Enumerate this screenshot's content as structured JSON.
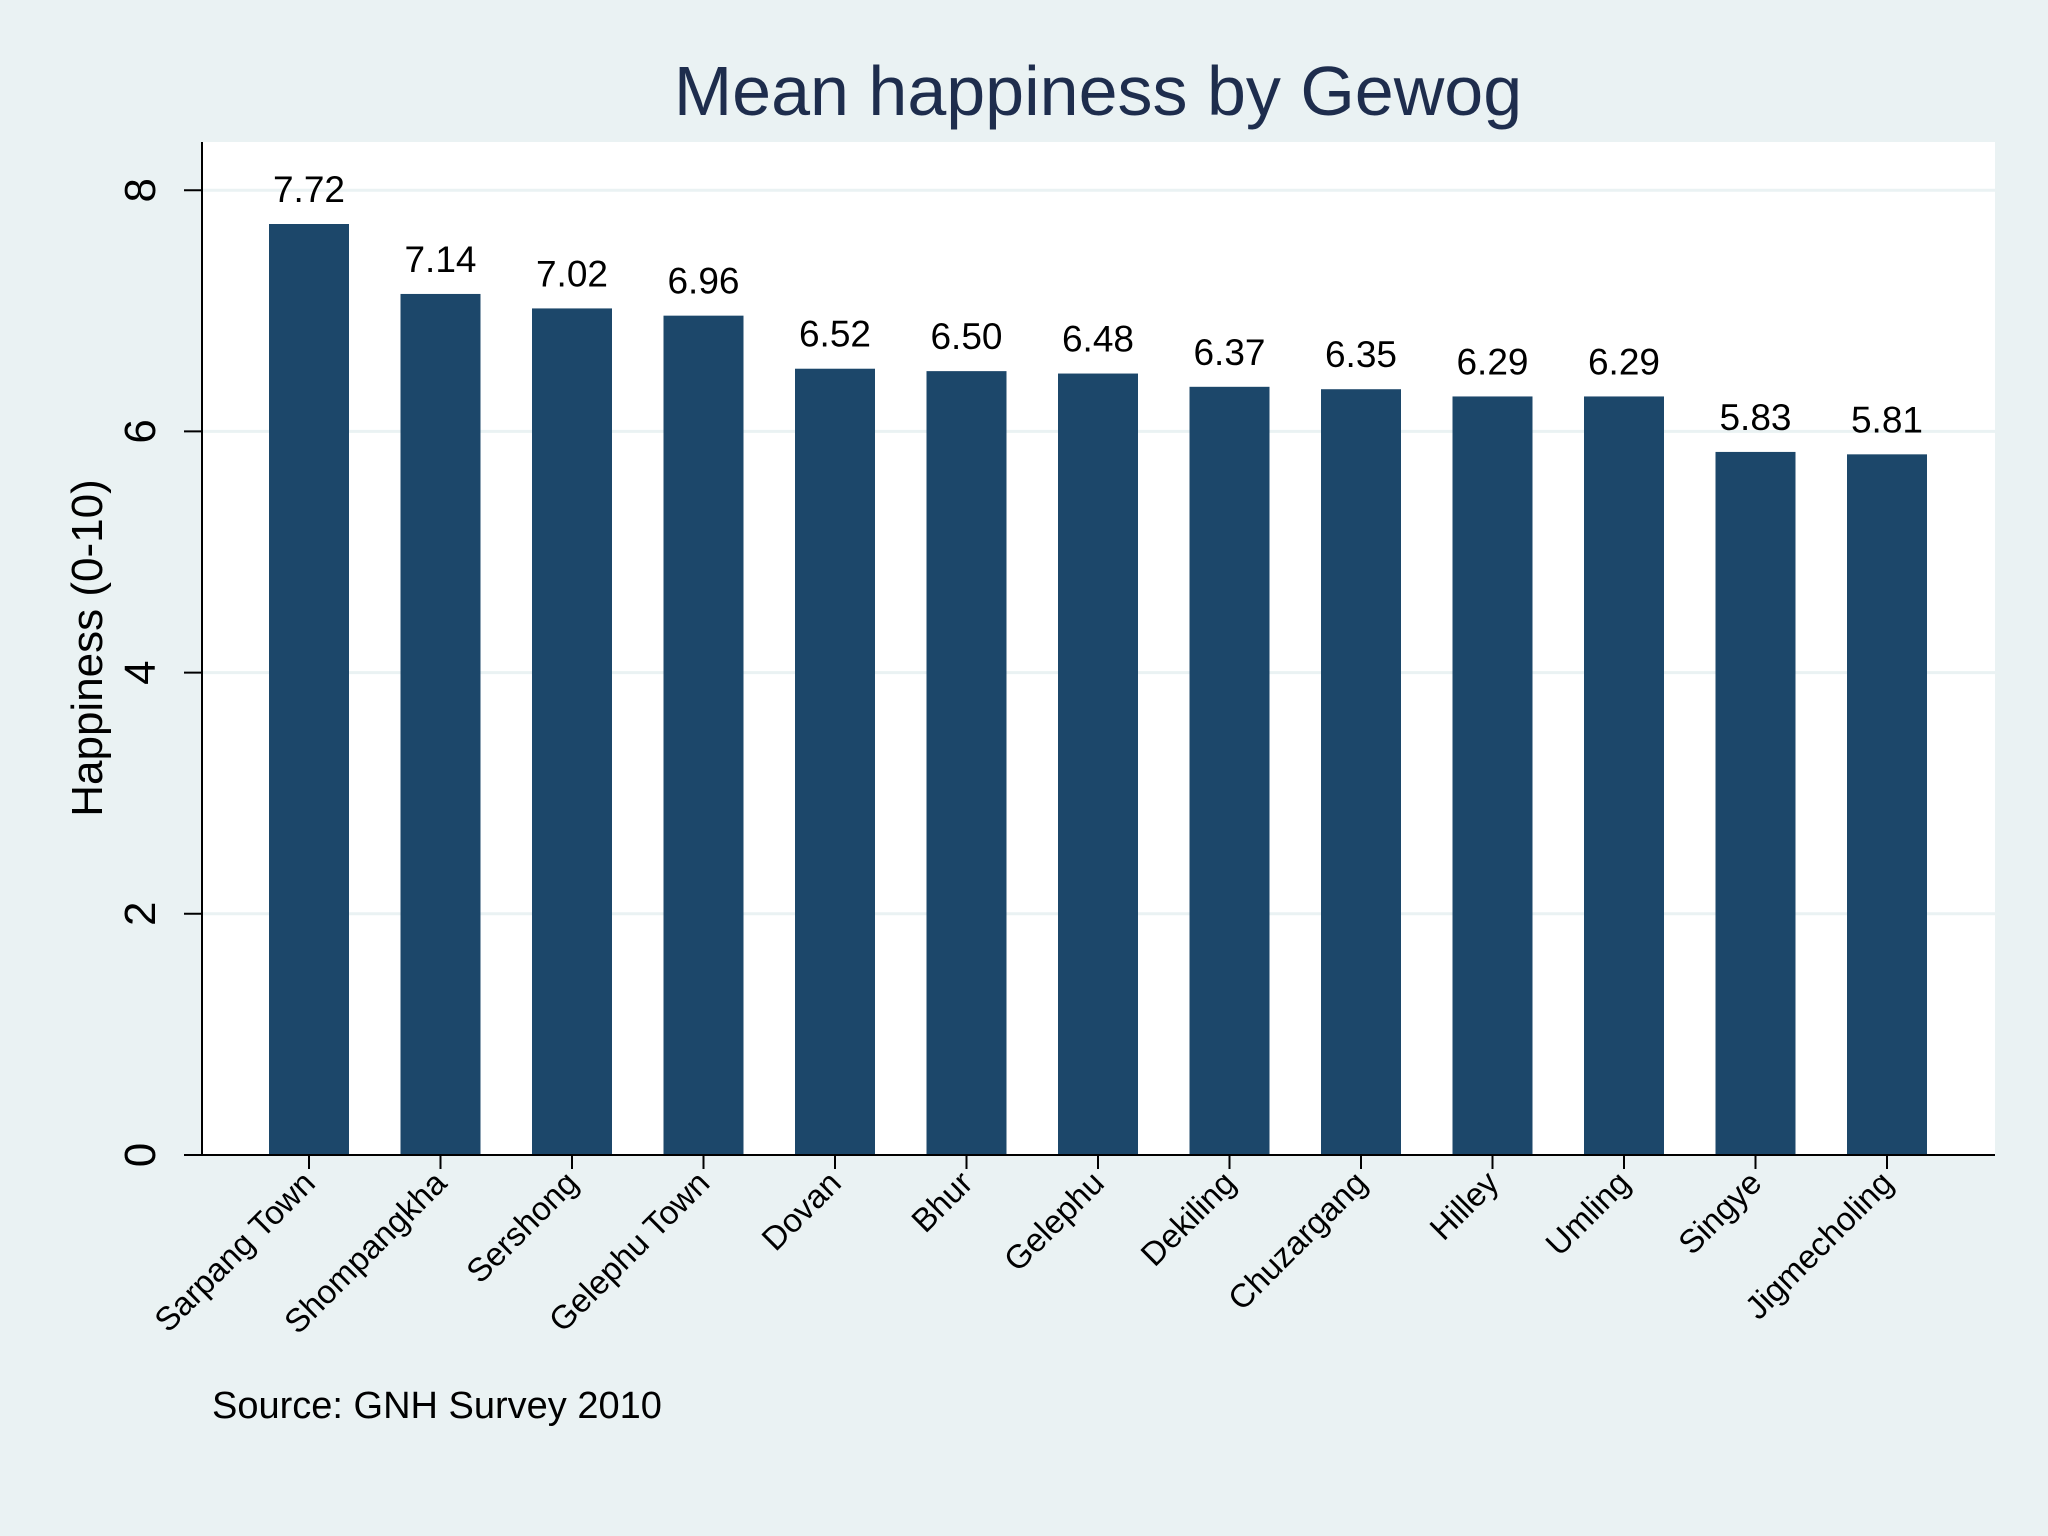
{
  "chart_data": {
    "type": "bar",
    "title": "Mean happiness by Gewog",
    "xlabel": "",
    "ylabel": "Happiness (0-10)",
    "ylim": [
      0,
      8.4
    ],
    "yticks": [
      0,
      2,
      4,
      6,
      8
    ],
    "grid": true,
    "categories": [
      "Sarpang Town",
      "Shompangkha",
      "Sershong",
      "Gelephu Town",
      "Dovan",
      "Bhur",
      "Gelephu",
      "Dekiling",
      "Chuzargang",
      "Hilley",
      "Umling",
      "Singye",
      "Jigmecholing"
    ],
    "values": [
      7.72,
      7.14,
      7.02,
      6.96,
      6.52,
      6.5,
      6.48,
      6.37,
      6.35,
      6.29,
      6.29,
      5.83,
      5.81
    ],
    "value_labels": [
      "7.72",
      "7.14",
      "7.02",
      "6.96",
      "6.52",
      "6.50",
      "6.48",
      "6.37",
      "6.35",
      "6.29",
      "6.29",
      "5.83",
      "5.81"
    ],
    "note": "Source: GNH Survey 2010",
    "colors": {
      "bar": "#1c476a",
      "outer_background": "#eaf2f3",
      "plot_background": "#ffffff",
      "grid": "#eaf2f3",
      "title": "#1e2d4d"
    }
  }
}
